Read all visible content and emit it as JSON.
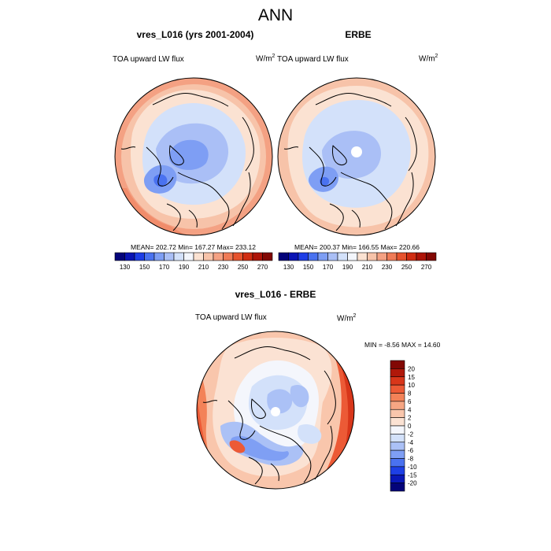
{
  "main_title": "ANN",
  "panels": [
    {
      "title": "vres_L016 (yrs 2001-2004)",
      "field_label": "TOA upward LW flux",
      "units": "W/m",
      "units_power": "2",
      "stats": "MEAN= 202.72  Min= 167.27  Max= 233.12"
    },
    {
      "title": "ERBE",
      "field_label": "TOA upward LW flux",
      "units": "W/m",
      "units_power": "2",
      "stats": "MEAN= 200.37  Min= 166.55  Max= 220.66"
    },
    {
      "title": "vres_L016 - ERBE",
      "field_label": "TOA upward LW flux",
      "units": "W/m",
      "units_power": "2",
      "stats": "MIN =  -8.56 MAX =  14.60"
    }
  ],
  "colorbar_top": {
    "labels": [
      "130",
      "150",
      "170",
      "190",
      "210",
      "230",
      "250",
      "270"
    ],
    "colors": [
      "#04047a",
      "#0a14b4",
      "#1e3ee6",
      "#4a72f0",
      "#7e9ef4",
      "#aabff6",
      "#d3e1fa",
      "#f3f6fc",
      "#fbe2d2",
      "#f7c3a9",
      "#f4a183",
      "#ef7b57",
      "#e6532e",
      "#d02d12",
      "#ad1408",
      "#820804"
    ]
  },
  "colorbar_diff": {
    "labels": [
      "20",
      "15",
      "10",
      "8",
      "6",
      "4",
      "2",
      "0",
      "-2",
      "-4",
      "-6",
      "-8",
      "-10",
      "-15",
      "-20"
    ],
    "colors": [
      "#820804",
      "#b0180a",
      "#d8361a",
      "#ec5a36",
      "#f38258",
      "#f6a683",
      "#f9c6ac",
      "#fbe2d3",
      "#f4f6fc",
      "#d3e1fa",
      "#abc1f6",
      "#7f9ff4",
      "#4a72f0",
      "#1e40e6",
      "#0a18b8",
      "#04047a"
    ]
  }
}
